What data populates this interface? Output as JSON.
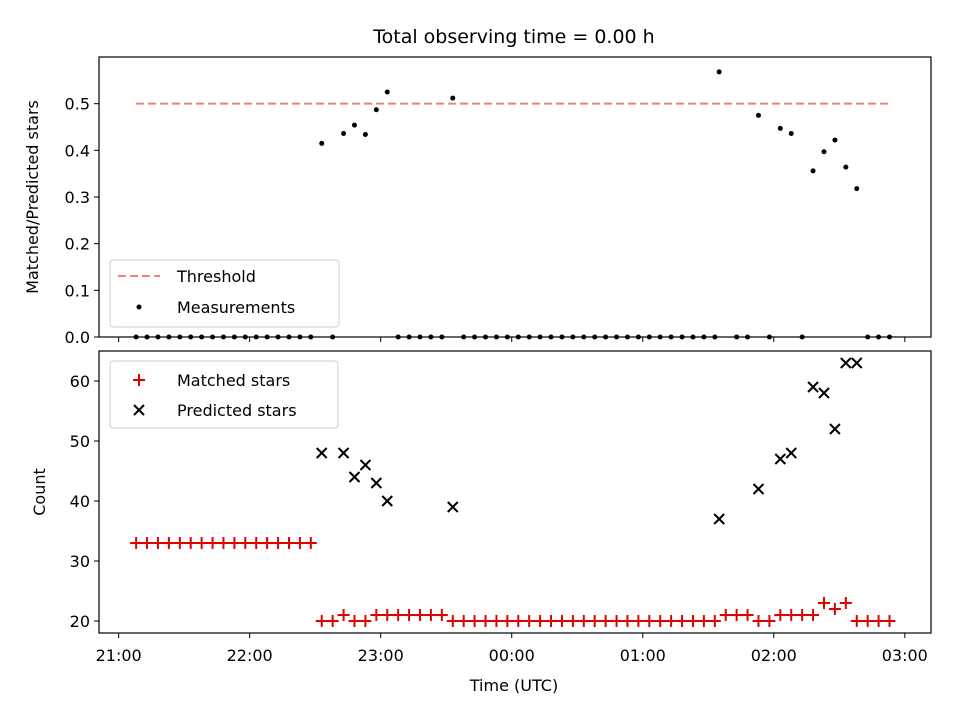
{
  "chart_data": {
    "title": "Total observing time = 0.00 h",
    "xlabel": "Time (UTC)",
    "x_ticks": [
      "21:00",
      "22:00",
      "23:00",
      "00:00",
      "01:00",
      "02:00",
      "03:00"
    ],
    "x_domain_hours_from_2100": [
      -0.15,
      6.2
    ],
    "colors": {
      "threshold": "#f08080",
      "measurements": "#000000",
      "matched": "#e00000",
      "predicted": "#000000"
    },
    "top": {
      "type": "scatter",
      "ylabel": "Matched/Predicted stars",
      "ylim": [
        0,
        0.6
      ],
      "y_ticks": [
        0.0,
        0.1,
        0.2,
        0.3,
        0.4,
        0.5
      ],
      "threshold": {
        "name": "Threshold",
        "value": 0.5,
        "x_range": [
          "21:08",
          "02:54"
        ]
      },
      "legend": {
        "placement": "lower-left",
        "entries": [
          "Threshold",
          "Measurements"
        ]
      },
      "measurements_name": "Measurements",
      "measurements": [
        [
          "21:08",
          0
        ],
        [
          "21:13",
          0
        ],
        [
          "21:18",
          0
        ],
        [
          "21:23",
          0
        ],
        [
          "21:28",
          0
        ],
        [
          "21:33",
          0
        ],
        [
          "21:38",
          0
        ],
        [
          "21:43",
          0
        ],
        [
          "21:48",
          0
        ],
        [
          "21:53",
          0
        ],
        [
          "21:58",
          0
        ],
        [
          "22:03",
          0
        ],
        [
          "22:08",
          0
        ],
        [
          "22:13",
          0
        ],
        [
          "22:18",
          0
        ],
        [
          "22:23",
          0
        ],
        [
          "22:28",
          0
        ],
        [
          "22:33",
          0.415
        ],
        [
          "22:38",
          0
        ],
        [
          "22:43",
          0.436
        ],
        [
          "22:48",
          0.454
        ],
        [
          "22:53",
          0.434
        ],
        [
          "22:58",
          0.487
        ],
        [
          "23:03",
          0.525
        ],
        [
          "23:08",
          0
        ],
        [
          "23:13",
          0
        ],
        [
          "23:18",
          0
        ],
        [
          "23:23",
          0
        ],
        [
          "23:28",
          0
        ],
        [
          "23:33",
          0.512
        ],
        [
          "23:38",
          0
        ],
        [
          "23:43",
          0
        ],
        [
          "23:48",
          0
        ],
        [
          "23:53",
          0
        ],
        [
          "23:58",
          0
        ],
        [
          "00:03",
          0
        ],
        [
          "00:08",
          0
        ],
        [
          "00:13",
          0
        ],
        [
          "00:18",
          0
        ],
        [
          "00:23",
          0
        ],
        [
          "00:28",
          0
        ],
        [
          "00:33",
          0
        ],
        [
          "00:38",
          0
        ],
        [
          "00:43",
          0
        ],
        [
          "00:48",
          0
        ],
        [
          "00:53",
          0
        ],
        [
          "00:58",
          0
        ],
        [
          "01:03",
          0
        ],
        [
          "01:08",
          0
        ],
        [
          "01:13",
          0
        ],
        [
          "01:18",
          0
        ],
        [
          "01:23",
          0
        ],
        [
          "01:28",
          0
        ],
        [
          "01:33",
          0
        ],
        [
          "01:35",
          0.568
        ],
        [
          "01:43",
          0
        ],
        [
          "01:48",
          0
        ],
        [
          "01:53",
          0.475
        ],
        [
          "01:58",
          0
        ],
        [
          "02:03",
          0.447
        ],
        [
          "02:08",
          0.436
        ],
        [
          "02:13",
          0
        ],
        [
          "02:18",
          0.356
        ],
        [
          "02:23",
          0.397
        ],
        [
          "02:28",
          0.422
        ],
        [
          "02:33",
          0.364
        ],
        [
          "02:38",
          0.318
        ],
        [
          "02:43",
          0
        ],
        [
          "02:48",
          0
        ],
        [
          "02:53",
          0
        ]
      ]
    },
    "bottom": {
      "type": "scatter",
      "ylabel": "Count",
      "ylim": [
        18,
        65
      ],
      "y_ticks": [
        20,
        30,
        40,
        50,
        60
      ],
      "legend": {
        "placement": "upper-left",
        "entries": [
          "Matched stars",
          "Predicted stars"
        ]
      },
      "matched_name": "Matched stars",
      "predicted_name": "Predicted stars",
      "matched": [
        [
          "21:08",
          33
        ],
        [
          "21:13",
          33
        ],
        [
          "21:18",
          33
        ],
        [
          "21:23",
          33
        ],
        [
          "21:28",
          33
        ],
        [
          "21:33",
          33
        ],
        [
          "21:38",
          33
        ],
        [
          "21:43",
          33
        ],
        [
          "21:48",
          33
        ],
        [
          "21:53",
          33
        ],
        [
          "21:58",
          33
        ],
        [
          "22:03",
          33
        ],
        [
          "22:08",
          33
        ],
        [
          "22:13",
          33
        ],
        [
          "22:18",
          33
        ],
        [
          "22:23",
          33
        ],
        [
          "22:28",
          33
        ],
        [
          "22:33",
          20
        ],
        [
          "22:38",
          20
        ],
        [
          "22:43",
          21
        ],
        [
          "22:48",
          20
        ],
        [
          "22:53",
          20
        ],
        [
          "22:58",
          21
        ],
        [
          "23:03",
          21
        ],
        [
          "23:08",
          21
        ],
        [
          "23:13",
          21
        ],
        [
          "23:18",
          21
        ],
        [
          "23:23",
          21
        ],
        [
          "23:28",
          21
        ],
        [
          "23:33",
          20
        ],
        [
          "23:38",
          20
        ],
        [
          "23:43",
          20
        ],
        [
          "23:48",
          20
        ],
        [
          "23:53",
          20
        ],
        [
          "23:58",
          20
        ],
        [
          "00:03",
          20
        ],
        [
          "00:08",
          20
        ],
        [
          "00:13",
          20
        ],
        [
          "00:18",
          20
        ],
        [
          "00:23",
          20
        ],
        [
          "00:28",
          20
        ],
        [
          "00:33",
          20
        ],
        [
          "00:38",
          20
        ],
        [
          "00:43",
          20
        ],
        [
          "00:48",
          20
        ],
        [
          "00:53",
          20
        ],
        [
          "00:58",
          20
        ],
        [
          "01:03",
          20
        ],
        [
          "01:08",
          20
        ],
        [
          "01:13",
          20
        ],
        [
          "01:18",
          20
        ],
        [
          "01:23",
          20
        ],
        [
          "01:28",
          20
        ],
        [
          "01:33",
          20
        ],
        [
          "01:38",
          21
        ],
        [
          "01:43",
          21
        ],
        [
          "01:48",
          21
        ],
        [
          "01:53",
          20
        ],
        [
          "01:58",
          20
        ],
        [
          "02:03",
          21
        ],
        [
          "02:08",
          21
        ],
        [
          "02:13",
          21
        ],
        [
          "02:18",
          21
        ],
        [
          "02:23",
          23
        ],
        [
          "02:28",
          22
        ],
        [
          "02:33",
          23
        ],
        [
          "02:38",
          20
        ],
        [
          "02:43",
          20
        ],
        [
          "02:48",
          20
        ],
        [
          "02:53",
          20
        ]
      ],
      "predicted": [
        [
          "22:33",
          48
        ],
        [
          "22:43",
          48
        ],
        [
          "22:48",
          44
        ],
        [
          "22:53",
          46
        ],
        [
          "22:58",
          43
        ],
        [
          "23:03",
          40
        ],
        [
          "23:33",
          39
        ],
        [
          "01:35",
          37
        ],
        [
          "01:53",
          42
        ],
        [
          "02:03",
          47
        ],
        [
          "02:08",
          48
        ],
        [
          "02:18",
          59
        ],
        [
          "02:23",
          58
        ],
        [
          "02:28",
          52
        ],
        [
          "02:33",
          63
        ],
        [
          "02:38",
          63
        ]
      ]
    }
  }
}
